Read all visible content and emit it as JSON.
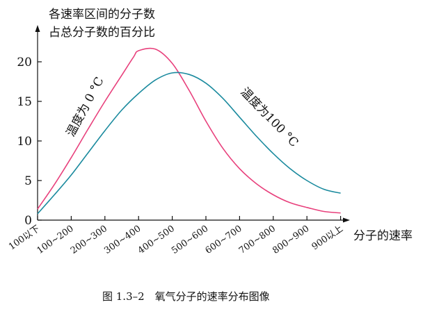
{
  "chart_data": {
    "type": "line",
    "title": "",
    "ylabel_lines": [
      "各速率区间的分子数",
      "占总分子数的百分比"
    ],
    "xlabel": "分子的速率",
    "ylim": [
      0,
      24
    ],
    "yticks": [
      0,
      5,
      10,
      15,
      20
    ],
    "categories": [
      "100以下",
      "100~200",
      "200~300",
      "300~400",
      "400~500",
      "500~600",
      "600~700",
      "700~800",
      "800~900",
      "900以上"
    ],
    "series": [
      {
        "name": "温度为 0 °C",
        "color": "#e8407c",
        "x": [
          0,
          0.5,
          1,
          1.5,
          2,
          2.5,
          2.85,
          3,
          3.5,
          4,
          4.5,
          5,
          5.5,
          6,
          6.5,
          7,
          7.5,
          8,
          8.5,
          9
        ],
        "values": [
          1.4,
          4.5,
          7.9,
          11.5,
          15.0,
          18.3,
          20.6,
          21.4,
          21.6,
          19.8,
          16.4,
          12.5,
          9.1,
          6.5,
          4.6,
          3.2,
          2.2,
          1.6,
          1.1,
          0.9
        ]
      },
      {
        "name": "温度为100 °C",
        "color": "#1a8a9e",
        "x": [
          0,
          0.5,
          1,
          1.5,
          2,
          2.5,
          3,
          3.5,
          4,
          4.5,
          5,
          5.5,
          6,
          6.5,
          7,
          7.5,
          8,
          8.5,
          9
        ],
        "values": [
          0.8,
          3.2,
          5.7,
          8.5,
          11.3,
          13.9,
          16.0,
          17.7,
          18.6,
          18.4,
          17.3,
          15.4,
          13.0,
          10.6,
          8.4,
          6.5,
          5.0,
          3.9,
          3.4
        ]
      }
    ],
    "caption": "图 1.3–2　氧气分子的速率分布图像"
  }
}
